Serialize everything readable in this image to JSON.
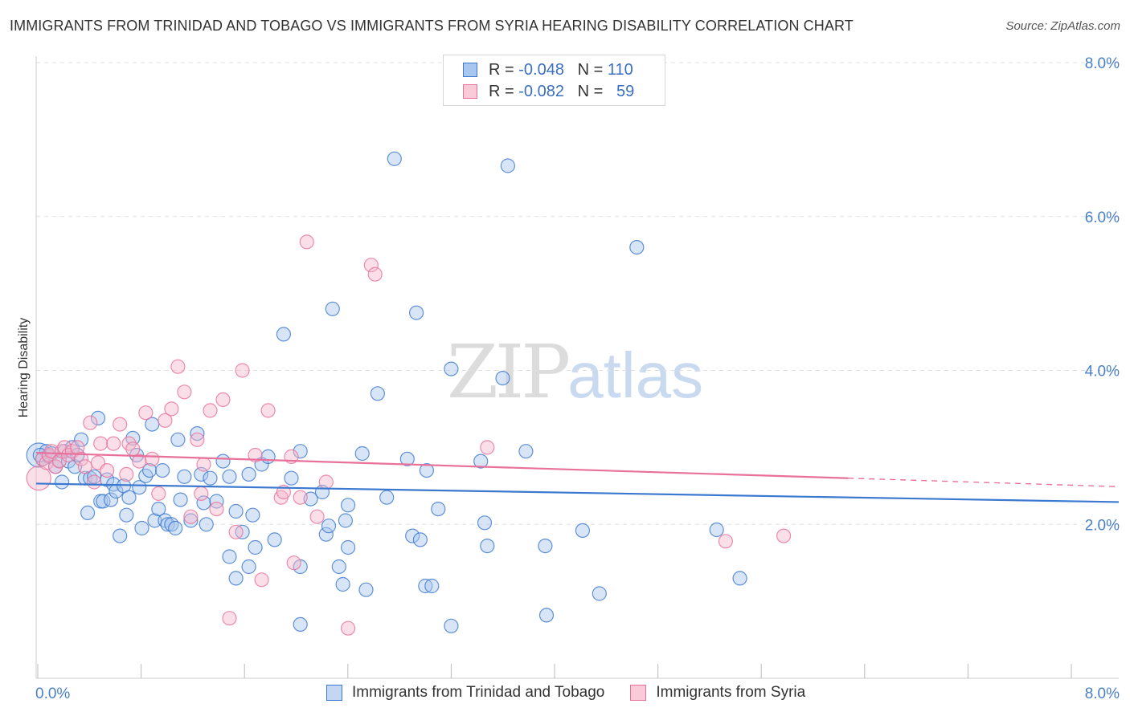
{
  "header": {
    "title": "IMMIGRANTS FROM TRINIDAD AND TOBAGO VS IMMIGRANTS FROM SYRIA HEARING DISABILITY CORRELATION CHART",
    "source": "Source: ZipAtlas.com"
  },
  "watermark": {
    "zip": "ZIP",
    "atlas": "atlas"
  },
  "legend": {
    "rows": [
      {
        "r_label": "R =",
        "r_value": "-0.048",
        "n_label": "N =",
        "n_value": "110"
      },
      {
        "r_label": "R =",
        "r_value": "-0.082",
        "n_label": "N =",
        "n_value": "59"
      }
    ]
  },
  "chart_data": {
    "type": "scatter",
    "title": "IMMIGRANTS FROM TRINIDAD AND TOBAGO VS IMMIGRANTS FROM SYRIA HEARING DISABILITY CORRELATION CHART",
    "xlabel": "",
    "ylabel": "Hearing Disability",
    "xlim": [
      0,
      8.4
    ],
    "ylim": [
      0,
      8.0
    ],
    "x_tick_labels": [
      "0.0%",
      "8.0%"
    ],
    "y_ticks": [
      2.0,
      4.0,
      6.0,
      8.0
    ],
    "y_tick_labels": [
      "2.0%",
      "4.0%",
      "6.0%",
      "8.0%"
    ],
    "grid": "horizontal dashed",
    "legend_position": "top-center",
    "colors": {
      "blue": "#3b78d0",
      "pink": "#e8709a",
      "blue_fill": "#a9c6ee",
      "pink_fill": "#f5b8cb"
    },
    "series": [
      {
        "name": "Immigrants from Trinidad and Tobago",
        "color": "#3b78d0",
        "r": "-0.048",
        "n": "110",
        "trend": {
          "x": [
            0.0,
            8.4
          ],
          "y": [
            2.53,
            2.29
          ]
        },
        "points": [
          [
            0.02,
            2.9
          ],
          [
            0.05,
            2.85
          ],
          [
            0.08,
            2.95
          ],
          [
            0.1,
            2.88
          ],
          [
            0.12,
            2.92
          ],
          [
            0.15,
            2.75
          ],
          [
            0.18,
            2.83
          ],
          [
            0.2,
            2.55
          ],
          [
            0.22,
            2.95
          ],
          [
            0.25,
            2.82
          ],
          [
            0.28,
            3.0
          ],
          [
            0.3,
            2.75
          ],
          [
            0.32,
            2.9
          ],
          [
            0.35,
            3.1
          ],
          [
            0.38,
            2.6
          ],
          [
            0.4,
            2.15
          ],
          [
            0.42,
            2.6
          ],
          [
            0.45,
            2.62
          ],
          [
            0.48,
            3.38
          ],
          [
            0.5,
            2.3
          ],
          [
            0.52,
            2.3
          ],
          [
            0.55,
            2.58
          ],
          [
            0.58,
            2.32
          ],
          [
            0.6,
            2.52
          ],
          [
            0.62,
            2.43
          ],
          [
            0.65,
            1.85
          ],
          [
            0.68,
            2.5
          ],
          [
            0.7,
            2.12
          ],
          [
            0.72,
            2.35
          ],
          [
            0.75,
            3.12
          ],
          [
            0.78,
            2.9
          ],
          [
            0.8,
            2.48
          ],
          [
            0.82,
            1.95
          ],
          [
            0.85,
            2.63
          ],
          [
            0.88,
            2.7
          ],
          [
            0.9,
            3.3
          ],
          [
            0.92,
            2.05
          ],
          [
            0.95,
            2.2
          ],
          [
            0.98,
            2.7
          ],
          [
            1.0,
            2.05
          ],
          [
            1.02,
            2.0
          ],
          [
            1.05,
            2.0
          ],
          [
            1.08,
            1.95
          ],
          [
            1.1,
            3.1
          ],
          [
            1.12,
            2.32
          ],
          [
            1.15,
            2.62
          ],
          [
            1.2,
            2.05
          ],
          [
            1.25,
            3.18
          ],
          [
            1.28,
            2.65
          ],
          [
            1.3,
            2.28
          ],
          [
            1.32,
            2.0
          ],
          [
            1.35,
            2.6
          ],
          [
            1.4,
            2.3
          ],
          [
            1.45,
            2.82
          ],
          [
            1.5,
            2.62
          ],
          [
            1.55,
            2.17
          ],
          [
            1.6,
            1.9
          ],
          [
            1.65,
            2.65
          ],
          [
            1.7,
            1.7
          ],
          [
            1.75,
            2.78
          ],
          [
            1.8,
            2.88
          ],
          [
            1.85,
            1.8
          ],
          [
            1.5,
            1.58
          ],
          [
            1.55,
            1.3
          ],
          [
            1.65,
            1.45
          ],
          [
            1.68,
            2.12
          ],
          [
            1.92,
            4.47
          ],
          [
            1.98,
            2.6
          ],
          [
            2.05,
            2.95
          ],
          [
            2.13,
            2.33
          ],
          [
            2.22,
            2.42
          ],
          [
            2.25,
            1.87
          ],
          [
            2.27,
            1.98
          ],
          [
            2.3,
            4.8
          ],
          [
            2.35,
            1.45
          ],
          [
            2.38,
            1.22
          ],
          [
            2.42,
            2.25
          ],
          [
            2.42,
            1.7
          ],
          [
            2.4,
            2.05
          ],
          [
            2.05,
            1.45
          ],
          [
            2.05,
            0.7
          ],
          [
            2.56,
            1.15
          ],
          [
            2.53,
            2.92
          ],
          [
            2.72,
            2.35
          ],
          [
            2.78,
            6.75
          ],
          [
            2.65,
            3.7
          ],
          [
            2.88,
            2.85
          ],
          [
            2.92,
            1.85
          ],
          [
            2.95,
            4.75
          ],
          [
            2.98,
            1.8
          ],
          [
            3.02,
            1.2
          ],
          [
            3.07,
            1.2
          ],
          [
            3.03,
            2.7
          ],
          [
            3.12,
            2.2
          ],
          [
            3.22,
            0.68
          ],
          [
            3.22,
            4.02
          ],
          [
            3.45,
            2.82
          ],
          [
            3.5,
            1.72
          ],
          [
            3.48,
            2.02
          ],
          [
            3.62,
            3.9
          ],
          [
            3.66,
            6.66
          ],
          [
            3.8,
            2.95
          ],
          [
            3.95,
            1.72
          ],
          [
            3.96,
            0.82
          ],
          [
            4.24,
            1.92
          ],
          [
            4.37,
            1.1
          ],
          [
            4.66,
            5.6
          ],
          [
            5.28,
            1.93
          ],
          [
            5.46,
            1.3
          ],
          [
            0.03,
            2.9
          ]
        ]
      },
      {
        "name": "Immigrants from Syria",
        "color": "#e8709a",
        "r": "-0.082",
        "n": "59",
        "trend": {
          "x": [
            0.0,
            6.3
          ],
          "y": [
            2.93,
            2.6
          ]
        },
        "trend_dashed": {
          "x": [
            6.3,
            8.4
          ],
          "y": [
            2.6,
            2.49
          ]
        },
        "points": [
          [
            0.02,
            2.6
          ],
          [
            0.05,
            2.85
          ],
          [
            0.08,
            2.8
          ],
          [
            0.1,
            2.9
          ],
          [
            0.12,
            2.95
          ],
          [
            0.15,
            2.75
          ],
          [
            0.18,
            2.82
          ],
          [
            0.2,
            2.95
          ],
          [
            0.22,
            3.0
          ],
          [
            0.25,
            2.9
          ],
          [
            0.28,
            2.95
          ],
          [
            0.32,
            3.0
          ],
          [
            0.35,
            2.85
          ],
          [
            0.38,
            2.75
          ],
          [
            0.42,
            3.32
          ],
          [
            0.45,
            2.55
          ],
          [
            0.48,
            2.8
          ],
          [
            0.5,
            3.05
          ],
          [
            0.55,
            2.7
          ],
          [
            0.6,
            3.05
          ],
          [
            0.65,
            3.3
          ],
          [
            0.7,
            2.65
          ],
          [
            0.72,
            3.05
          ],
          [
            0.75,
            2.98
          ],
          [
            0.8,
            2.82
          ],
          [
            0.85,
            3.45
          ],
          [
            0.9,
            2.85
          ],
          [
            0.95,
            2.4
          ],
          [
            1.0,
            3.35
          ],
          [
            1.05,
            3.5
          ],
          [
            1.1,
            4.05
          ],
          [
            1.15,
            3.72
          ],
          [
            1.2,
            2.1
          ],
          [
            1.25,
            3.1
          ],
          [
            1.28,
            2.4
          ],
          [
            1.3,
            2.78
          ],
          [
            1.35,
            3.48
          ],
          [
            1.4,
            2.2
          ],
          [
            1.45,
            3.62
          ],
          [
            1.5,
            0.78
          ],
          [
            1.55,
            1.9
          ],
          [
            1.6,
            4.0
          ],
          [
            1.7,
            2.9
          ],
          [
            1.75,
            1.28
          ],
          [
            1.8,
            3.48
          ],
          [
            1.9,
            2.35
          ],
          [
            1.92,
            2.42
          ],
          [
            1.98,
            2.88
          ],
          [
            2.0,
            1.5
          ],
          [
            2.05,
            2.35
          ],
          [
            2.1,
            5.67
          ],
          [
            2.18,
            2.1
          ],
          [
            2.25,
            2.55
          ],
          [
            2.42,
            0.65
          ],
          [
            2.6,
            5.37
          ],
          [
            2.63,
            5.25
          ],
          [
            3.5,
            3.0
          ],
          [
            5.35,
            1.78
          ],
          [
            5.8,
            1.85
          ]
        ]
      }
    ]
  },
  "bottom_legend": {
    "items": [
      {
        "label": "Immigrants from Trinidad and Tobago"
      },
      {
        "label": "Immigrants from Syria"
      }
    ]
  }
}
